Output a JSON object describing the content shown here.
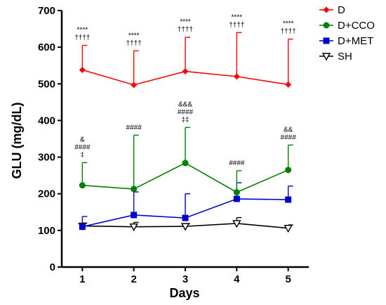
{
  "chart_data": {
    "type": "line",
    "xlabel": "Days",
    "ylabel": "GLU (mg/dL)",
    "x": [
      1,
      2,
      3,
      4,
      5
    ],
    "x_tick_labels": [
      "1",
      "2",
      "3",
      "4",
      "5"
    ],
    "xlim": [
      0.6,
      5.4
    ],
    "ylim": [
      0,
      700
    ],
    "y_ticks": [
      0,
      100,
      200,
      300,
      400,
      500,
      600,
      700
    ],
    "y_tick_labels": [
      "0",
      "100",
      "200",
      "300",
      "400",
      "500",
      "600",
      "700"
    ],
    "legend_position": "top-right",
    "grid": false,
    "series": [
      {
        "name": "D",
        "color": "#ff0000",
        "marker": "diamond",
        "values": [
          538,
          497,
          534,
          520,
          498
        ],
        "error_upper": [
          605,
          590,
          627,
          640,
          622
        ]
      },
      {
        "name": "D+CCO",
        "color": "#008000",
        "marker": "circle",
        "values": [
          223,
          213,
          284,
          204,
          265
        ],
        "error_upper": [
          285,
          360,
          381,
          263,
          333
        ]
      },
      {
        "name": "D+MET",
        "color": "#0000cc",
        "marker": "square",
        "values": [
          110,
          142,
          134,
          186,
          184
        ],
        "error_upper": [
          138,
          205,
          200,
          230,
          221
        ]
      },
      {
        "name": "SH",
        "color": "#000000",
        "marker": "triangle-down-open",
        "values": [
          112,
          110,
          111,
          119,
          106
        ],
        "error_upper": [
          120,
          122,
          118,
          135,
          115
        ]
      }
    ],
    "annotations": [
      {
        "x": 1,
        "lines": [
          "****",
          "††††"
        ],
        "y": 605
      },
      {
        "x": 2,
        "lines": [
          "****",
          "††††"
        ],
        "y": 590
      },
      {
        "x": 3,
        "lines": [
          "****",
          "††††"
        ],
        "y": 627
      },
      {
        "x": 4,
        "lines": [
          "****",
          "††††"
        ],
        "y": 640
      },
      {
        "x": 5,
        "lines": [
          "****",
          "††††"
        ],
        "y": 622
      },
      {
        "x": 1,
        "lines": [
          "&",
          "####",
          "‡"
        ],
        "y": 285
      },
      {
        "x": 2,
        "lines": [
          "####"
        ],
        "y": 360
      },
      {
        "x": 3,
        "lines": [
          "&&&",
          "####",
          "‡‡"
        ],
        "y": 381
      },
      {
        "x": 4,
        "lines": [
          "####"
        ],
        "y": 263
      },
      {
        "x": 5,
        "lines": [
          "&&",
          "####"
        ],
        "y": 333
      }
    ]
  }
}
